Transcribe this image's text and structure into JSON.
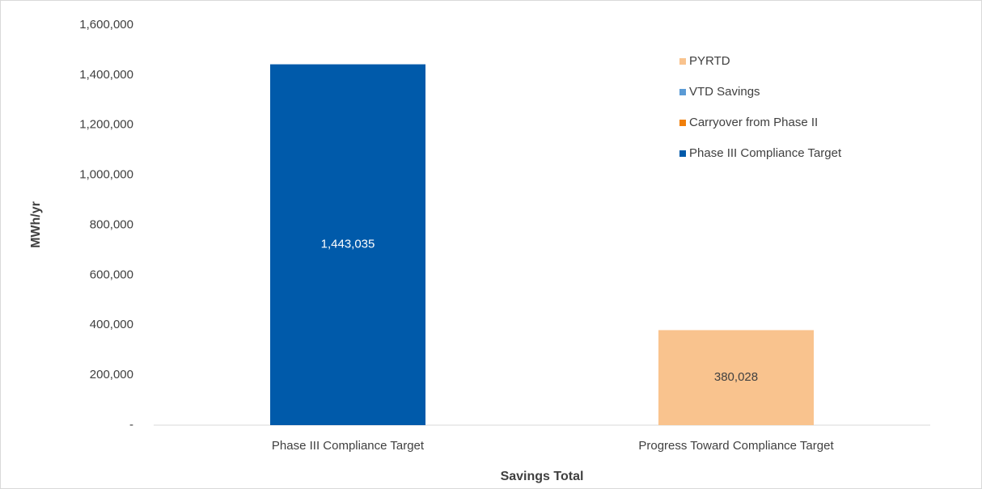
{
  "chart_data": {
    "type": "stacked_bar",
    "categories": [
      "Phase III Compliance Target",
      "Progress Toward Compliance Target"
    ],
    "series": [
      {
        "name": "PYRTD",
        "color": "#f9c38e",
        "values": [
          null,
          380028
        ],
        "value_labels": [
          null,
          "380,028"
        ]
      },
      {
        "name": "VTD Savings",
        "color": "#5b9bd5",
        "values": [
          null,
          0
        ],
        "value_labels": [
          null,
          "-"
        ]
      },
      {
        "name": "Carryover from Phase II",
        "color": "#f07f0a",
        "values": [
          null,
          null
        ]
      },
      {
        "name": "Phase III Compliance Target",
        "color": "#005aaa",
        "values": [
          1443035,
          null
        ],
        "value_labels": [
          "1,443,035",
          null
        ]
      }
    ],
    "ylabel": "MWh/yr",
    "xlabel": "Savings Total",
    "ylim": [
      0,
      1600000
    ],
    "yticks": [
      {
        "value": 0,
        "label": "-"
      },
      {
        "value": 200000,
        "label": "200,000"
      },
      {
        "value": 400000,
        "label": "400,000"
      },
      {
        "value": 600000,
        "label": "600,000"
      },
      {
        "value": 800000,
        "label": "800,000"
      },
      {
        "value": 1000000,
        "label": "1,000,000"
      },
      {
        "value": 1200000,
        "label": "1,200,000"
      },
      {
        "value": 1400000,
        "label": "1,400,000"
      },
      {
        "value": 1600000,
        "label": "1,600,000"
      }
    ],
    "grid": false,
    "legend": "upper right"
  }
}
